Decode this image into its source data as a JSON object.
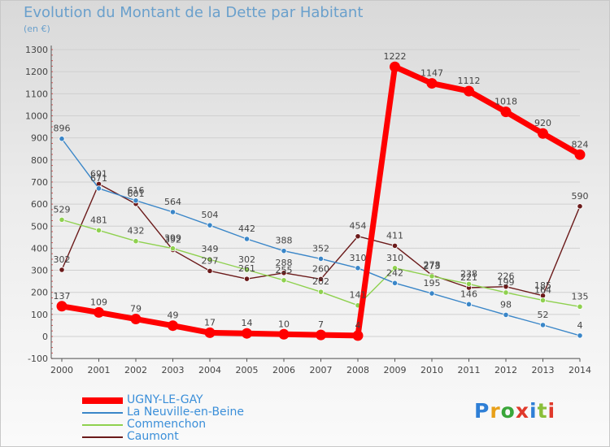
{
  "header": {
    "title": "Evolution du Montant de la Dette par Habitant",
    "unit": "(en €)"
  },
  "brand": {
    "name": "Proxiti",
    "letter_colors": [
      "#2f7fd6",
      "#e8a019",
      "#3aa63a",
      "#e0392b",
      "#2f7fd6",
      "#8abf3a",
      "#e0392b"
    ]
  },
  "chart_data": {
    "type": "line",
    "title": "Evolution du Montant de la Dette par Habitant",
    "subtitle": "(en €)",
    "xlabel": "",
    "ylabel": "",
    "x": [
      "2000",
      "2001",
      "2002",
      "2003",
      "2004",
      "2005",
      "2006",
      "2007",
      "2008",
      "2009",
      "2010",
      "2011",
      "2012",
      "2013",
      "2014"
    ],
    "ylim": [
      -100,
      1300
    ],
    "yticks": [
      -100,
      0,
      100,
      200,
      300,
      400,
      500,
      600,
      700,
      800,
      900,
      1000,
      1100,
      1200,
      1300
    ],
    "grid": "horizontal",
    "legend_position": "bottom-left",
    "series": [
      {
        "name": "Caumont",
        "color": "#6b1a1a",
        "values": [
          302,
          691,
          601,
          392,
          297,
          261,
          288,
          260,
          454,
          411,
          278,
          221,
          226,
          185,
          590
        ],
        "labels": [
          302,
          691,
          601,
          392,
          297,
          261,
          288,
          260,
          454,
          411,
          278,
          221,
          226,
          185,
          590
        ]
      },
      {
        "name": "Commenchon",
        "color": "#8fd14f",
        "values": [
          529,
          481,
          432,
          399,
          349,
          302,
          255,
          202,
          141,
          310,
          273,
          238,
          199,
          164,
          135
        ],
        "labels": [
          529,
          481,
          432,
          399,
          349,
          302,
          255,
          202,
          141,
          310,
          273,
          238,
          199,
          164,
          135
        ]
      },
      {
        "name": "La Neuville-en-Beine",
        "color": "#3a86c8",
        "values": [
          896,
          671,
          616,
          564,
          504,
          442,
          388,
          352,
          310,
          242,
          195,
          146,
          98,
          52,
          4
        ],
        "labels": [
          896,
          671,
          616,
          564,
          504,
          442,
          388,
          352,
          310,
          242,
          195,
          146,
          98,
          52,
          4
        ]
      },
      {
        "name": "UGNY-LE-GAY",
        "color": "#ff0000",
        "values": [
          137,
          109,
          79,
          49,
          17,
          14,
          10,
          7,
          4,
          1222,
          1147,
          1112,
          1018,
          920,
          824
        ],
        "labels": [
          137,
          109,
          79,
          49,
          17,
          14,
          10,
          7,
          4,
          1222,
          1147,
          1112,
          1018,
          920,
          824
        ]
      }
    ],
    "legend_order": [
      "UGNY-LE-GAY",
      "La Neuville-en-Beine",
      "Commenchon",
      "Caumont"
    ]
  }
}
